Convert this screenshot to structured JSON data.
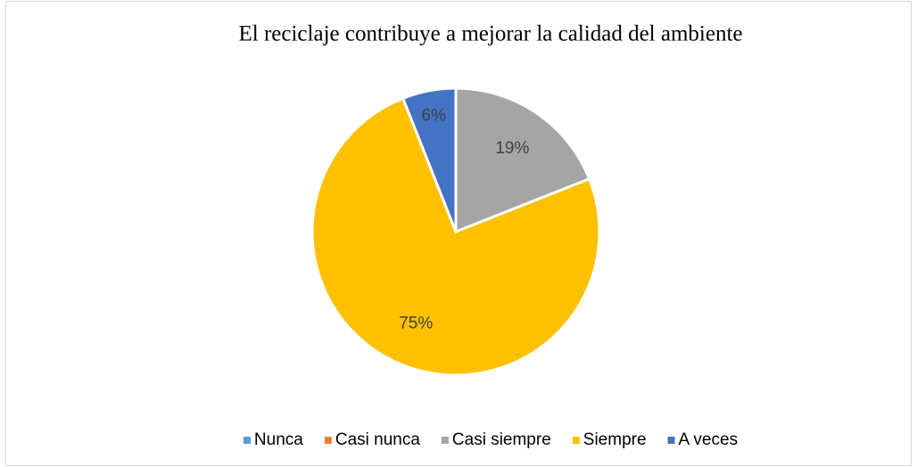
{
  "chart_data": {
    "type": "pie",
    "title": "El reciclaje contribuye a  mejorar la calidad del ambiente",
    "categories": [
      "Nunca",
      "Casi nunca",
      "Casi siempre",
      "Siempre",
      "A veces"
    ],
    "values": [
      0,
      0,
      19,
      75,
      6
    ],
    "value_labels": [
      null,
      null,
      "19%",
      "75%",
      "6%"
    ],
    "colors": [
      "#5b9bd5",
      "#ed7d31",
      "#a5a5a5",
      "#ffc000",
      "#4472c4"
    ],
    "legend": "bottom"
  }
}
